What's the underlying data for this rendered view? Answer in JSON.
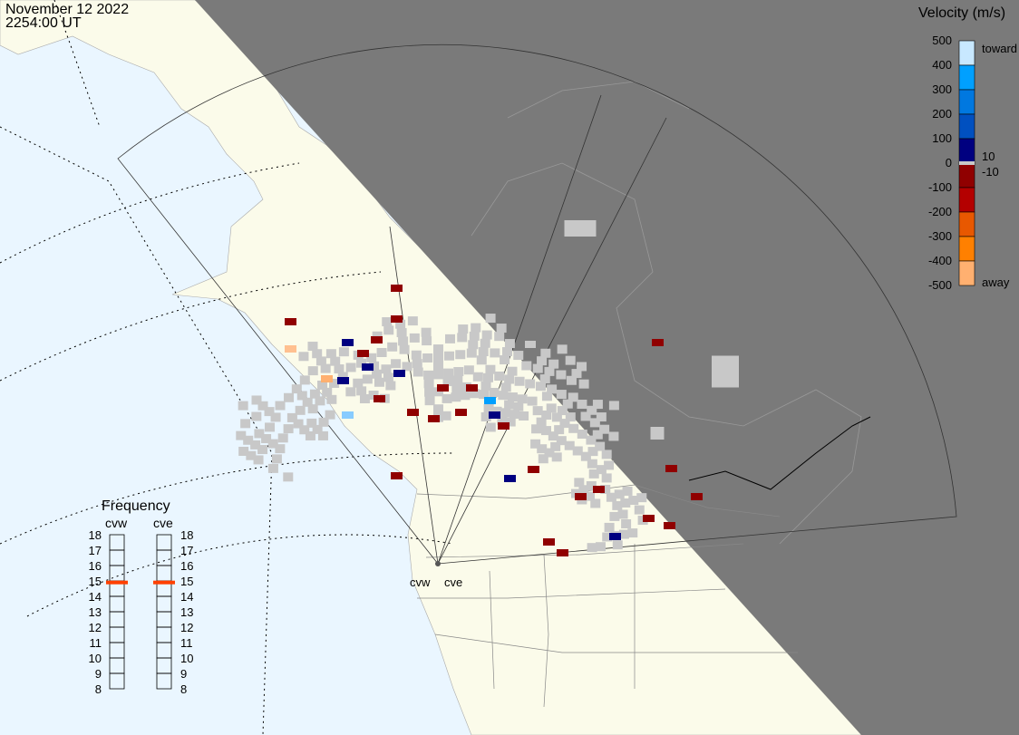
{
  "header": {
    "date": "November 12 2022",
    "time": "2254:00 UT"
  },
  "velocity_scale": {
    "title": "Velocity (m/s)",
    "ticks": [
      "500",
      "400",
      "300",
      "200",
      "100",
      "0",
      "-100",
      "-200",
      "-300",
      "-400",
      "-500"
    ],
    "toward_label": "toward",
    "away_label": "away",
    "ground_scatter_upper": "10",
    "ground_scatter_lower": "-10",
    "colors": [
      "#c8e8ff",
      "#88ccff",
      "#00a0ff",
      "#0078e0",
      "#0050c0",
      "#0030a0",
      "#000080",
      "#900000",
      "#b40000",
      "#d03000",
      "#e85800",
      "#ff8000",
      "#ffb070",
      "#ffe0c0"
    ]
  },
  "frequency": {
    "title": "Frequency",
    "radars": [
      {
        "name": "cvw",
        "value_mhz": 14.9
      },
      {
        "name": "cve",
        "value_mhz": 14.9
      }
    ],
    "ticks": [
      "18",
      "17",
      "16",
      "15",
      "14",
      "13",
      "12",
      "11",
      "10",
      "9",
      "8"
    ],
    "indicator_color": "#ff4000"
  },
  "map": {
    "radar_labels": [
      "cvw",
      "cve"
    ],
    "colors": {
      "ocean": "#eaf6ff",
      "land": "#fbfbea",
      "night": "#7a7a7a",
      "ground_scatter": "#c8c8c8"
    }
  }
}
